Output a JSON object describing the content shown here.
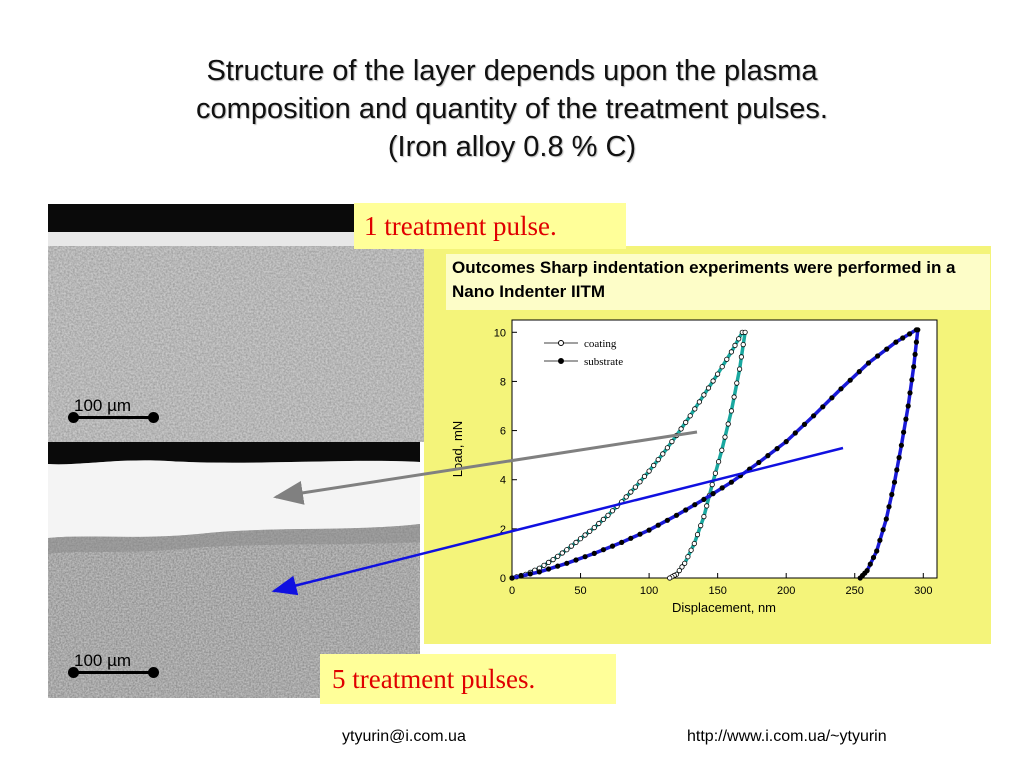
{
  "slide": {
    "title_lines": [
      "Structure  of  the  layer  depends  upon the plasma",
      "composition and quantity of the treatment pulses.",
      "(Iron alloy 0.8 %  C)"
    ],
    "label_pulse_1": "1 treatment pulse.",
    "label_pulse_5": "5  treatment pulses.",
    "scale_top": "100 µm",
    "scale_bottom": "100 µm",
    "caption": "Outcomes Sharp indentation experiments were performed in a Nano Indenter IITM",
    "footer_email": "ytyurin@i.com.ua",
    "footer_url": "http://www.i.com.ua/~ytyurin"
  },
  "colors": {
    "panel_bg": "#f4f47a",
    "pulse_label_bg": "#ffff99",
    "pulse_label_text": "#e00000",
    "coating_fit": "#1aa8a0",
    "substrate_fit": "#1a1ad8",
    "grey_arrow": "#808080",
    "blue_arrow": "#1010e0"
  },
  "chart_data": {
    "type": "line",
    "xlabel": "Displacement, nm",
    "ylabel": "Load, mN",
    "xlim": [
      0,
      310
    ],
    "ylim": [
      0,
      10.5
    ],
    "xticks": [
      0,
      50,
      100,
      150,
      200,
      250,
      300
    ],
    "yticks": [
      0,
      2,
      4,
      6,
      8,
      10
    ],
    "legend_position": "top-left",
    "series": [
      {
        "name": "coating",
        "marker": "open-circle",
        "loading": [
          [
            0,
            0
          ],
          [
            10,
            0.15
          ],
          [
            20,
            0.4
          ],
          [
            30,
            0.75
          ],
          [
            40,
            1.15
          ],
          [
            50,
            1.6
          ],
          [
            60,
            2.05
          ],
          [
            70,
            2.55
          ],
          [
            80,
            3.1
          ],
          [
            90,
            3.7
          ],
          [
            100,
            4.35
          ],
          [
            110,
            5.05
          ],
          [
            120,
            5.8
          ],
          [
            130,
            6.6
          ],
          [
            140,
            7.45
          ],
          [
            150,
            8.3
          ],
          [
            160,
            9.2
          ],
          [
            168,
            10.0
          ]
        ],
        "unloading": [
          [
            170,
            10.0
          ],
          [
            166,
            8.5
          ],
          [
            160,
            6.8
          ],
          [
            153,
            5.2
          ],
          [
            146,
            3.8
          ],
          [
            140,
            2.5
          ],
          [
            133,
            1.4
          ],
          [
            126,
            0.6
          ],
          [
            120,
            0.15
          ],
          [
            115,
            0.0
          ]
        ]
      },
      {
        "name": "substrate",
        "marker": "filled-circle",
        "loading": [
          [
            0,
            0
          ],
          [
            20,
            0.25
          ],
          [
            40,
            0.6
          ],
          [
            60,
            1.0
          ],
          [
            80,
            1.45
          ],
          [
            100,
            1.95
          ],
          [
            120,
            2.55
          ],
          [
            140,
            3.2
          ],
          [
            160,
            3.9
          ],
          [
            180,
            4.7
          ],
          [
            200,
            5.55
          ],
          [
            220,
            6.6
          ],
          [
            240,
            7.7
          ],
          [
            260,
            8.75
          ],
          [
            280,
            9.6
          ],
          [
            295,
            10.1
          ]
        ],
        "unloading": [
          [
            296,
            10.1
          ],
          [
            293,
            8.6
          ],
          [
            289,
            7.0
          ],
          [
            284,
            5.4
          ],
          [
            279,
            3.9
          ],
          [
            273,
            2.4
          ],
          [
            266,
            1.1
          ],
          [
            259,
            0.3
          ],
          [
            254,
            0.0
          ]
        ]
      }
    ]
  }
}
